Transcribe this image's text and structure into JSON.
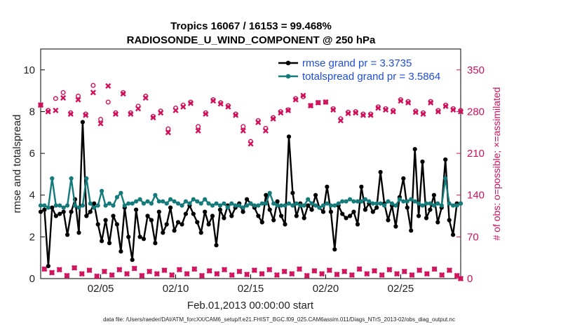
{
  "chart_data": {
    "type": "line",
    "title_line1": "Tropics 16067 / 16153 = 99.468%",
    "title_line2": "RADIOSONDE_U_WIND_COMPONENT @ 250 hPa",
    "xlabel": "Feb.01,2013 00:00:00 start",
    "ylabel_left": "rmse and totalspread",
    "ylabel_right": "# of obs: o=possible; ×=assimilated",
    "footnote": "data file: /Users/raeder/DAI/ATM_forcXX/CAM6_setup/f.e21.FHIST_BGC.f09_025.CAM6assim.011/Diags_NTrS_2013-02/obs_diag_output.nc",
    "xlim": [
      1,
      29
    ],
    "ylim_left": [
      0,
      11
    ],
    "ylim_right": [
      0,
      385
    ],
    "yticks_left": [
      "0",
      "2",
      "4",
      "6",
      "8",
      "10"
    ],
    "yticks_right": [
      "0",
      "70",
      "140",
      "210",
      "280",
      "350"
    ],
    "xticks": [
      {
        "value": 5,
        "label": "02/05"
      },
      {
        "value": 10,
        "label": "02/10"
      },
      {
        "value": 15,
        "label": "02/15"
      },
      {
        "value": 20,
        "label": "02/20"
      },
      {
        "value": 25,
        "label": "02/25"
      }
    ],
    "legend": [
      {
        "label": "rmse grand pr = 3.3735",
        "color": "#000000"
      },
      {
        "label": "totalspread grand pr = 3.5864",
        "color": "#147a7a"
      }
    ],
    "colors": {
      "rmse": "#000000",
      "spread": "#147a7a",
      "obs": "#d0105a"
    },
    "rmse": [
      3.2,
      3.3,
      0.6,
      3.4,
      3.0,
      3.1,
      3.2,
      2.1,
      3.2,
      3.8,
      2.2,
      7.5,
      3.0,
      3.2,
      3.6,
      2.6,
      1.8,
      2.8,
      1.7,
      3.0,
      2.6,
      1.3,
      3.4,
      2.0,
      0.9,
      3.3,
      2.0,
      1.9,
      3.0,
      2.8,
      1.7,
      3.2,
      2.2,
      2.6,
      3.4,
      2.3,
      2.7,
      2.6,
      3.1,
      3.5,
      3.1,
      2.7,
      2.2,
      3.2,
      2.6,
      3.0,
      1.6,
      3.3,
      2.9,
      3.5,
      3.0,
      3.4,
      3.6,
      3.2,
      3.8,
      3.6,
      3.4,
      3.0,
      2.7,
      4.0,
      3.3,
      2.8,
      3.7,
      3.0,
      2.6,
      6.8,
      4.1,
      3.0,
      3.6,
      2.9,
      3.5,
      3.3,
      4.0,
      3.4,
      3.2,
      4.4,
      3.2,
      1.4,
      3.5,
      3.1,
      2.9,
      3.0,
      3.2,
      2.6,
      4.4,
      3.3,
      3.6,
      3.2,
      3.4,
      5.1,
      3.6,
      2.8,
      3.5,
      2.5,
      3.9,
      4.8,
      3.4,
      2.3,
      6.2,
      3.0,
      5.6,
      2.9,
      3.3,
      4.0,
      2.7,
      3.4,
      5.7,
      2.8,
      2.1,
      3.6,
      3.6
    ],
    "spread": [
      3.5,
      3.5,
      3.4,
      4.8,
      3.5,
      3.5,
      3.4,
      3.5,
      4.8,
      3.5,
      3.4,
      3.5,
      4.8,
      3.6,
      3.4,
      3.5,
      4.2,
      3.5,
      3.6,
      3.5,
      3.9,
      4.1,
      3.5,
      3.6,
      3.6,
      3.7,
      3.8,
      3.6,
      3.7,
      3.6,
      4.0,
      3.7,
      3.7,
      3.6,
      3.8,
      3.7,
      3.6,
      3.5,
      3.7,
      3.6,
      3.8,
      3.7,
      3.6,
      3.8,
      3.6,
      3.5,
      3.6,
      3.5,
      3.6,
      3.4,
      3.6,
      3.5,
      3.5,
      3.4,
      3.5,
      3.6,
      3.5,
      3.5,
      3.6,
      3.6,
      4.1,
      3.6,
      3.5,
      3.5,
      3.5,
      3.6,
      3.5,
      3.6,
      3.5,
      3.5,
      3.8,
      3.6,
      3.5,
      3.4,
      3.5,
      3.6,
      3.5,
      3.5,
      3.6,
      3.7,
      3.7,
      3.8,
      3.7,
      3.7,
      3.7,
      3.8,
      3.7,
      3.6,
      3.6,
      3.6,
      3.5,
      3.7,
      3.6,
      3.5,
      3.8,
      3.7,
      3.7,
      3.8,
      3.7,
      3.6,
      3.5,
      3.6,
      3.6,
      3.5,
      3.6,
      3.5,
      4.8,
      3.6,
      3.5,
      3.5,
      3.6
    ],
    "obs_times": [
      1.0,
      1.5,
      2.0,
      2.5,
      3.0,
      3.5,
      4.0,
      4.5,
      5.0,
      5.5,
      6.0,
      6.5,
      7.0,
      7.5,
      8.0,
      8.5,
      9.0,
      9.5,
      10.0,
      10.5,
      11.0,
      11.5,
      12.0,
      12.5,
      13.0,
      13.5,
      14.0,
      14.5,
      15.0,
      15.5,
      16.0,
      16.5,
      17.0,
      17.5,
      18.0,
      18.5,
      19.0,
      19.5,
      20.0,
      20.5,
      21.0,
      21.5,
      22.0,
      22.5,
      23.0,
      23.5,
      24.0,
      24.5,
      25.0,
      25.5,
      26.0,
      26.5,
      27.0,
      27.5,
      28.0,
      28.5,
      29.0
    ],
    "obs_possible_12z": [
      291,
      282,
      302,
      312,
      278,
      306,
      276,
      324,
      267,
      296,
      278,
      312,
      278,
      289,
      306,
      272,
      281,
      251,
      286,
      291,
      296,
      255,
      278,
      300,
      295,
      290,
      276,
      255,
      230,
      265,
      252,
      270,
      280,
      283,
      302,
      305,
      290,
      295,
      296,
      285,
      268,
      279,
      280,
      276,
      276,
      288,
      285,
      282,
      300,
      297,
      281,
      278,
      297,
      282,
      291,
      285,
      282
    ],
    "obs_assimilated_12z": [
      291,
      280,
      282,
      303,
      276,
      300,
      274,
      312,
      260,
      323,
      276,
      310,
      276,
      285,
      303,
      270,
      278,
      245,
      282,
      288,
      294,
      248,
      276,
      298,
      293,
      288,
      274,
      248,
      226,
      262,
      248,
      268,
      278,
      282,
      300,
      307,
      290,
      295,
      296,
      283,
      265,
      277,
      278,
      274,
      274,
      286,
      283,
      280,
      298,
      295,
      279,
      276,
      295,
      280,
      289,
      283,
      280
    ],
    "obs_possible_00z": [
      16,
      10,
      15,
      5,
      18,
      8,
      14,
      4,
      12,
      6,
      15,
      8,
      17,
      5,
      12,
      8,
      14,
      6,
      15,
      8,
      16,
      5,
      13,
      8,
      15,
      6,
      12,
      7,
      14,
      8,
      15,
      6,
      12,
      8,
      16,
      5,
      13,
      8,
      14,
      7,
      12,
      6,
      16,
      8,
      13,
      6,
      15,
      8,
      12,
      6,
      14,
      8,
      16,
      6,
      14,
      5,
      0
    ],
    "obs_assimilated_00z": [
      16,
      10,
      15,
      5,
      18,
      8,
      14,
      4,
      12,
      6,
      15,
      8,
      17,
      5,
      12,
      8,
      14,
      6,
      15,
      8,
      16,
      5,
      13,
      8,
      15,
      6,
      12,
      7,
      14,
      8,
      15,
      6,
      12,
      8,
      16,
      5,
      13,
      8,
      14,
      7,
      12,
      6,
      16,
      8,
      13,
      6,
      15,
      8,
      12,
      6,
      14,
      8,
      16,
      6,
      14,
      5,
      0
    ]
  }
}
